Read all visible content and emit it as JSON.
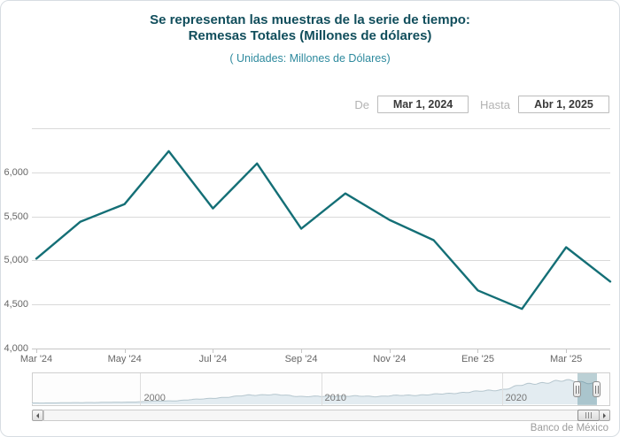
{
  "header": {
    "title_line1": "Se representan las muestras de la serie de tiempo:",
    "title_line2": "Remesas Totales (Millones de dólares)",
    "subtitle": "( Unidades:  Millones de Dólares)"
  },
  "controls": {
    "from_label": "De",
    "from_value": "Mar 1, 2024",
    "to_label": "Hasta",
    "to_value": "Abr 1, 2025"
  },
  "credit": "Banco de México",
  "colors": {
    "line": "#146f76",
    "title": "#114e5c",
    "subtitle": "#2e8a9e",
    "axis_label": "#666666",
    "gridline": "#d9d9d9",
    "nav_fill": "#e3ecf1",
    "nav_stroke": "#b5c6ce",
    "nav_mask": "rgba(50,115,130,0.32)"
  },
  "chart_data": [
    {
      "type": "line",
      "title": "Remesas Totales (Millones de dólares)",
      "ylabel": "Millones de Dólares",
      "categories": [
        "Mar 2024",
        "Abr 2024",
        "May 2024",
        "Jun 2024",
        "Jul 2024",
        "Ago 2024",
        "Sep 2024",
        "Oct 2024",
        "Nov 2024",
        "Dic 2024",
        "Ene 2025",
        "Feb 2025",
        "Mar 2025",
        "Abr 2025"
      ],
      "values": [
        5020,
        5440,
        5640,
        6240,
        5590,
        6100,
        5360,
        5760,
        5460,
        5230,
        4660,
        4450,
        5150,
        4760
      ],
      "xtick_labels": [
        "Mar '24",
        "May '24",
        "Jul '24",
        "Sep '24",
        "Nov '24",
        "Ene '25",
        "Mar '25"
      ],
      "ytick_labels": [
        "4,000",
        "4,500",
        "5,000",
        "5,500",
        "6,000"
      ],
      "ylim": [
        4000,
        6500
      ],
      "grid": true,
      "legend": "none"
    },
    {
      "type": "area",
      "role": "navigator",
      "x_years": [
        1994,
        1995,
        1996,
        1997,
        1998,
        1999,
        2000,
        2001,
        2002,
        2003,
        2004,
        2005,
        2006,
        2007,
        2008,
        2009,
        2010,
        2011,
        2012,
        2013,
        2014,
        2015,
        2016,
        2017,
        2018,
        2019,
        2020,
        2021,
        2022,
        2023,
        2024,
        2025
      ],
      "values": [
        290,
        310,
        350,
        400,
        430,
        490,
        550,
        740,
        820,
        1100,
        1400,
        1650,
        2150,
        2180,
        2100,
        1780,
        1800,
        1900,
        1850,
        1810,
        1980,
        2060,
        2240,
        2400,
        2800,
        3020,
        3380,
        4300,
        4880,
        5280,
        5400,
        4900
      ],
      "xtick_labels": [
        "2000",
        "2010",
        "2020"
      ],
      "xtick_years": [
        2000,
        2010,
        2020
      ],
      "xlim": [
        1994,
        2026
      ],
      "ylim": [
        0,
        6500
      ],
      "data_end_year": 2025.25,
      "selection": {
        "from": "Mar 2024",
        "to": "Abr 2025",
        "from_year": 2024.17,
        "to_year": 2025.25
      }
    }
  ]
}
